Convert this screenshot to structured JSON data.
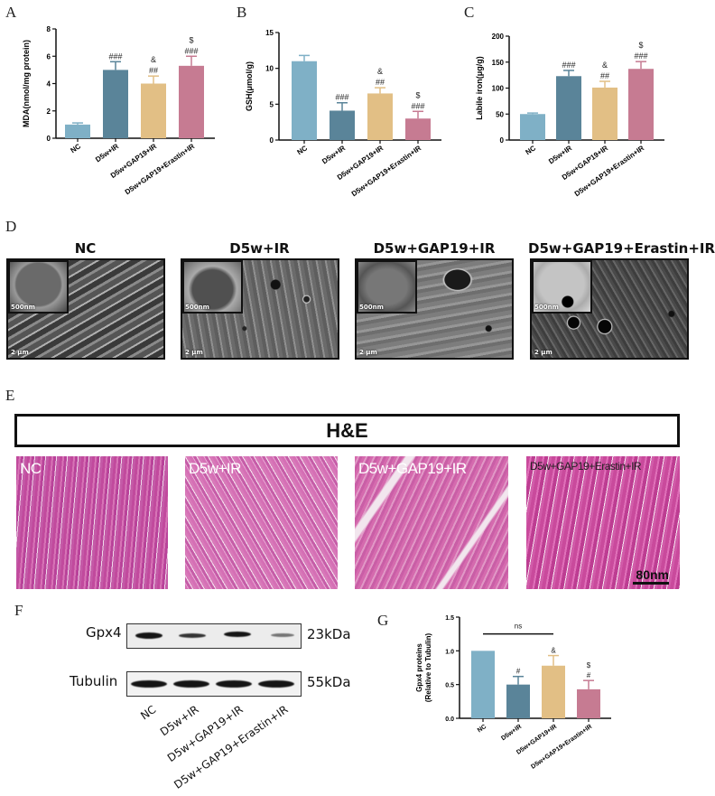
{
  "panel_letters": {
    "A": "A",
    "B": "B",
    "C": "C",
    "D": "D",
    "E": "E",
    "F": "F",
    "G": "G"
  },
  "groups": [
    "NC",
    "D5w+IR",
    "D5w+GAP19+IR",
    "D5w+GAP19+Erastin+IR"
  ],
  "colors": {
    "NC": "#7fb0c6",
    "D5w+IR": "#5a8499",
    "D5w+GAP19+IR": "#e2bf85",
    "D5w+GAP19+Erastin+IR": "#c67b92",
    "axis": "#111111"
  },
  "chart_data": [
    {
      "id": "A",
      "type": "bar",
      "title": "",
      "categories": [
        "NC",
        "D5w+IR",
        "D5w+GAP19+IR",
        "D5w+GAP19+Erastin+IR"
      ],
      "values": [
        1.0,
        5.0,
        4.0,
        5.3
      ],
      "errors": [
        0.12,
        0.6,
        0.55,
        0.7
      ],
      "annotations": [
        "",
        "###",
        "##\n&",
        "###\n$"
      ],
      "xlabel": "",
      "ylabel": "MDA(nmol/mg protein)",
      "ylim": [
        0,
        8
      ],
      "yticks": [
        0,
        2,
        4,
        6,
        8
      ],
      "grid": false
    },
    {
      "id": "B",
      "type": "bar",
      "title": "",
      "categories": [
        "NC",
        "D5w+IR",
        "D5w+GAP19+IR",
        "D5w+GAP19+Erastin+IR"
      ],
      "values": [
        11.0,
        4.1,
        6.5,
        3.0
      ],
      "errors": [
        0.8,
        1.1,
        0.8,
        1.0
      ],
      "annotations": [
        "",
        "###",
        "##\n&",
        "###\n$"
      ],
      "xlabel": "",
      "ylabel": "GSH(μmol/g)",
      "ylim": [
        0,
        15
      ],
      "yticks": [
        0,
        5,
        10,
        15
      ],
      "grid": false
    },
    {
      "id": "C",
      "type": "bar",
      "title": "",
      "categories": [
        "NC",
        "D5w+IR",
        "D5w+GAP19+IR",
        "D5w+GAP19+Erastin+IR"
      ],
      "values": [
        50,
        123,
        101,
        137
      ],
      "errors": [
        2,
        11,
        12,
        14
      ],
      "annotations": [
        "",
        "###",
        "##\n&",
        "###\n$"
      ],
      "xlabel": "",
      "ylabel": "Labile iron(μg/g)",
      "ylim": [
        0,
        200
      ],
      "yticks": [
        0,
        50,
        100,
        150,
        200
      ],
      "grid": false
    },
    {
      "id": "G",
      "type": "bar",
      "title": "",
      "categories": [
        "NC",
        "D5w+IR",
        "D5w+GAP19+IR",
        "D5w+GAP19+Erastin+IR"
      ],
      "values": [
        1.0,
        0.5,
        0.78,
        0.43
      ],
      "errors": [
        0,
        0.12,
        0.15,
        0.13
      ],
      "annotations": [
        "",
        "#",
        "&",
        "#\n$"
      ],
      "bracket": {
        "from": 0,
        "to": 2,
        "y": 1.25,
        "label": "ns"
      },
      "xlabel": "",
      "ylabel": "Gpx4 proteins\n(Relative to Tubulin)",
      "ylim": [
        0,
        1.5
      ],
      "yticks": [
        0.0,
        0.5,
        1.0,
        1.5
      ],
      "grid": false
    }
  ],
  "tem": {
    "panels": [
      {
        "title": "NC",
        "inset_scale": "500nm",
        "scale": "2 μm"
      },
      {
        "title": "D5w+IR",
        "inset_scale": "500nm",
        "scale": "2 μm"
      },
      {
        "title": "D5w+GAP19+IR",
        "inset_scale": "500nm",
        "scale": "2 μm"
      },
      {
        "title": "D5w+GAP19+Erastin+IR",
        "inset_scale": "500nm",
        "scale": "2 μm"
      }
    ]
  },
  "he": {
    "title": "H&E",
    "panels": [
      {
        "label": "NC"
      },
      {
        "label": "D5w+IR"
      },
      {
        "label": "D5w+GAP19+IR"
      },
      {
        "label": "D5w+GAP19+Erastin+IR"
      }
    ],
    "scale_bar": "80nm"
  },
  "western": {
    "rows": [
      {
        "protein": "Gpx4",
        "kda": "23kDa",
        "intensity": [
          0.95,
          0.7,
          0.85,
          0.45
        ]
      },
      {
        "protein": "Tubulin",
        "kda": "55kDa",
        "intensity": [
          1,
          1,
          1,
          1
        ]
      }
    ],
    "lanes": [
      "NC",
      "D5w+IR",
      "D5w+GAP19+IR",
      "D5w+GAP19+Erastin+IR"
    ]
  }
}
